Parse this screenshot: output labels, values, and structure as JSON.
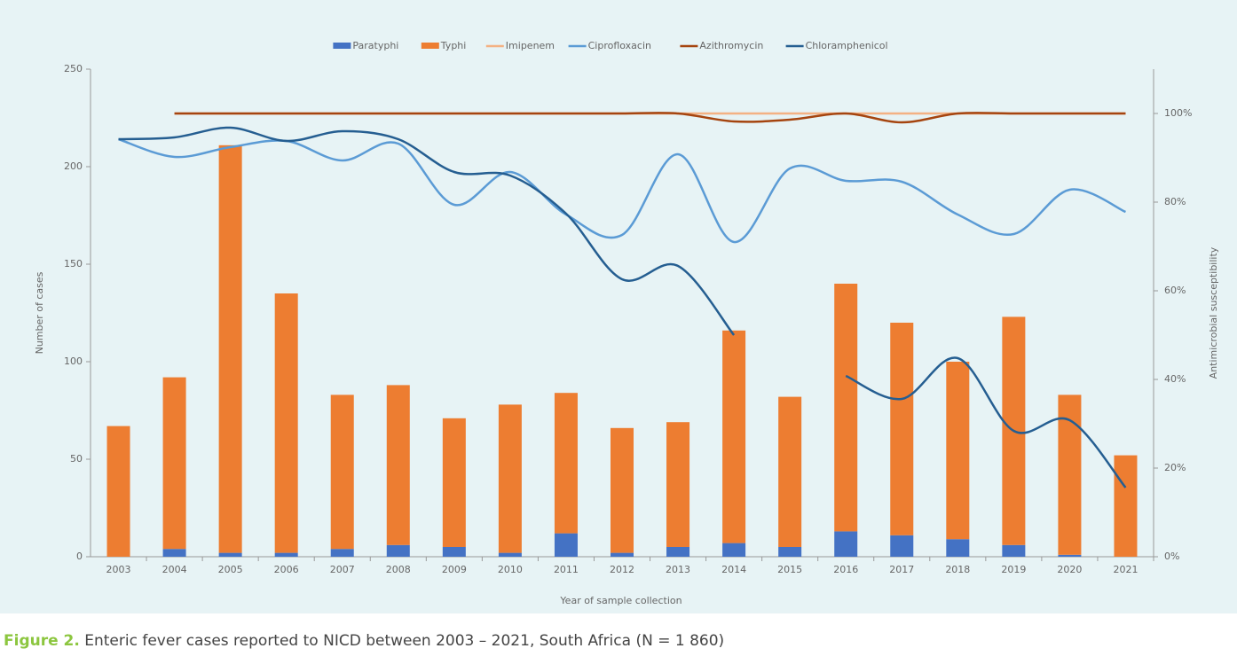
{
  "chart_data": {
    "type": "bar",
    "title": null,
    "caption_label": "Figure 2.",
    "caption": "Enteric fever cases reported to NICD between 2003 – 2021, South Africa (N = 1 860)",
    "x_label": "Year of sample collection",
    "y_label": "Number of cases",
    "y2_label": "Antimicrobial susceptibility",
    "stacked": true,
    "categories": [
      "2003",
      "2004",
      "2005",
      "2006",
      "2007",
      "2008",
      "2009",
      "2010",
      "2011",
      "2012",
      "2013",
      "2014",
      "2015",
      "2016",
      "2017",
      "2018",
      "2019",
      "2020",
      "2021"
    ],
    "series": [
      {
        "name": "Paratyphi",
        "type": "bar",
        "color": "#4472c4",
        "values": [
          0,
          4,
          2,
          2,
          4,
          6,
          5,
          2,
          12,
          2,
          5,
          7,
          5,
          13,
          11,
          9,
          6,
          1,
          0
        ]
      },
      {
        "name": "Typhi",
        "type": "bar",
        "color": "#ed7d31",
        "values": [
          67,
          88,
          209,
          133,
          79,
          82,
          66,
          76,
          72,
          64,
          64,
          109,
          77,
          127,
          109,
          91,
          117,
          82,
          52
        ]
      },
      {
        "name": "Imipenem",
        "type": "line",
        "axis": "y2",
        "color": "#f4b183",
        "values": [
          null,
          100,
          100,
          100,
          100,
          100,
          100,
          100,
          100,
          100,
          100,
          100,
          100,
          100,
          100,
          100,
          100,
          100,
          100
        ]
      },
      {
        "name": "Ciprofloxacin",
        "type": "line",
        "axis": "y2",
        "color": "#5b9bd5",
        "values": [
          94.2,
          90.2,
          92.4,
          93.8,
          89.4,
          93.2,
          79.4,
          86.8,
          77.2,
          72.6,
          90.8,
          71,
          87.6,
          84.8,
          84.6,
          77.2,
          72.8,
          82.8,
          77.8
        ]
      },
      {
        "name": "Azithromycin",
        "type": "line",
        "axis": "y2",
        "color": "#a5440f",
        "values": [
          null,
          100,
          100,
          100,
          100,
          100,
          100,
          100,
          100,
          100,
          100,
          98.2,
          98.6,
          100,
          98,
          100,
          100,
          100,
          100
        ]
      },
      {
        "name": "Chloramphenicol",
        "type": "line",
        "axis": "y2",
        "color": "#255e91",
        "values": [
          94.2,
          94.6,
          96.8,
          93.8,
          96,
          94.2,
          86.8,
          86,
          77.4,
          62.6,
          65.6,
          50,
          null,
          40.8,
          35.6,
          44.8,
          28.4,
          30.8,
          15.6
        ]
      }
    ],
    "ylim": [
      0,
      250
    ],
    "yticks": [
      0,
      50,
      100,
      150,
      200,
      250
    ],
    "y2lim": [
      0,
      110
    ],
    "y2ticks": [
      {
        "value": 0,
        "label": "0%"
      },
      {
        "value": 20,
        "label": "20%"
      },
      {
        "value": 40,
        "label": "40%"
      },
      {
        "value": 60,
        "label": "60%"
      },
      {
        "value": 80,
        "label": "80%"
      },
      {
        "value": 100,
        "label": "100%"
      }
    ],
    "legend": "top"
  }
}
